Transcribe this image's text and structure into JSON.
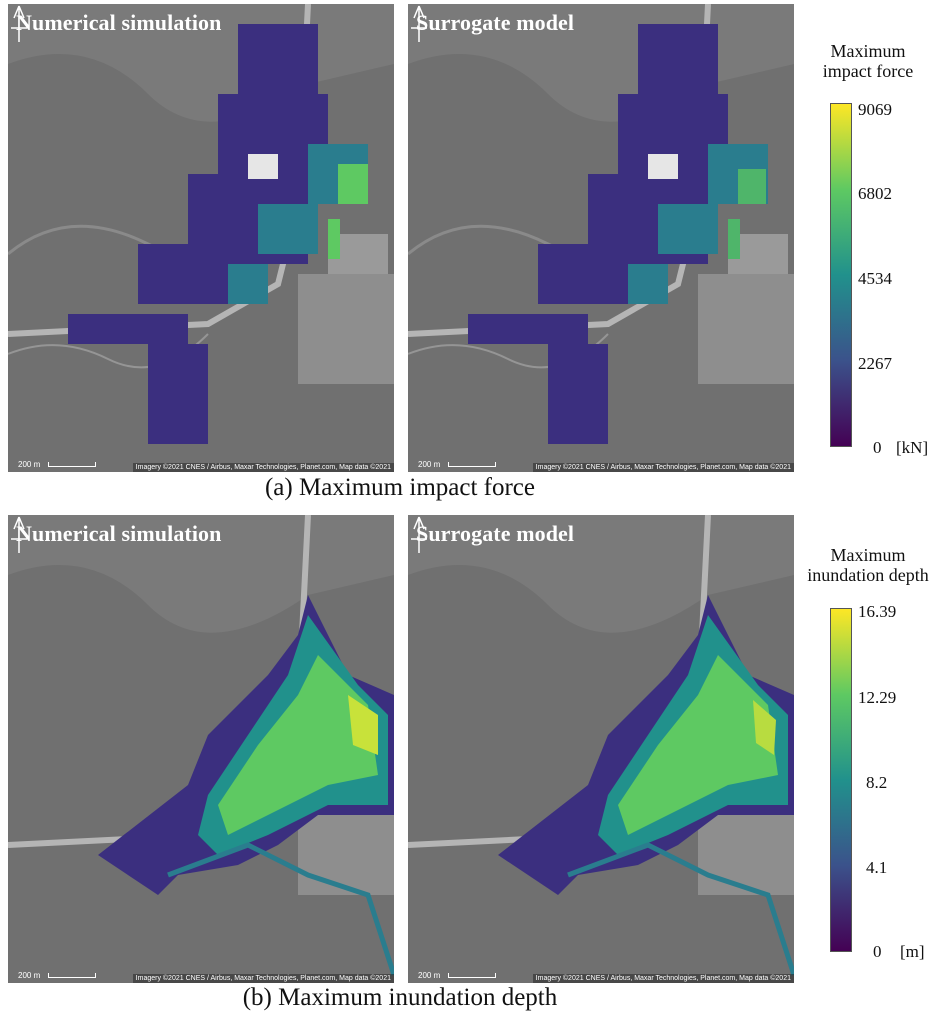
{
  "panels": {
    "a": {
      "left_title": "Numerical simulation",
      "right_title": "Surrogate model",
      "caption": "(a) Maximum impact force",
      "colorbar": {
        "title_line1": "Maximum",
        "title_line2": "impact force",
        "ticks": [
          "9069",
          "6802",
          "4534",
          "2267",
          "0"
        ],
        "unit": "[kN]",
        "min": 0,
        "max": 9069
      }
    },
    "b": {
      "left_title": "Numerical simulation",
      "right_title": "Surrogate model",
      "caption": "(b) Maximum inundation depth",
      "colorbar": {
        "title_line1": "Maximum",
        "title_line2": "inundation depth",
        "ticks": [
          "16.39",
          "12.29",
          "8.2",
          "4.1",
          "0"
        ],
        "unit": "[m]",
        "min": 0,
        "max": 16.39
      }
    }
  },
  "map_overlay": {
    "scale_label": "200 m",
    "attribution": "Imagery ©2021 CNES / Airbus, Maxar Technologies, Planet.com, Map data ©2021"
  },
  "colormap": [
    "#440154",
    "#3b528b",
    "#21918c",
    "#5ec962",
    "#fde725"
  ]
}
